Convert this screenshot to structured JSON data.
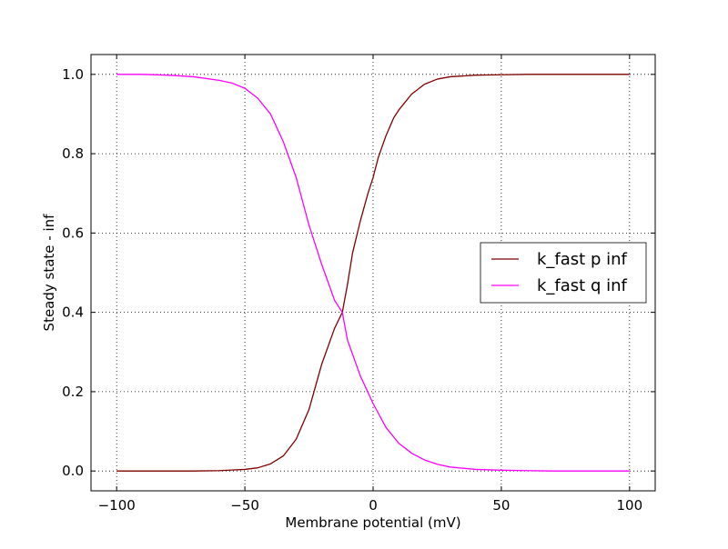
{
  "chart_data": {
    "type": "line",
    "title": "",
    "xlabel": "Membrane potential (mV)",
    "ylabel": "Steady state - inf",
    "xlim": [
      -110,
      110
    ],
    "ylim": [
      -0.05,
      1.05
    ],
    "xticks": [
      -100,
      -50,
      0,
      50,
      100
    ],
    "xtick_labels": [
      "−100",
      "−50",
      "0",
      "50",
      "100"
    ],
    "yticks": [
      0.0,
      0.2,
      0.4,
      0.6,
      0.8,
      1.0
    ],
    "ytick_labels": [
      "0.0",
      "0.2",
      "0.4",
      "0.6",
      "0.8",
      "1.0"
    ],
    "grid": true,
    "legend_position": "center-right",
    "series": [
      {
        "name": "k_fast p inf",
        "color": "#800000",
        "x": [
          -100,
          -90,
          -80,
          -70,
          -60,
          -50,
          -45,
          -40,
          -35,
          -30,
          -25,
          -20,
          -15,
          -12,
          -10,
          -8,
          -5,
          -2,
          0,
          2,
          5,
          8,
          10,
          15,
          20,
          25,
          30,
          40,
          50,
          60,
          70,
          80,
          90,
          100
        ],
        "y": [
          0.0,
          0.0,
          0.0,
          0.0,
          0.001,
          0.004,
          0.008,
          0.018,
          0.038,
          0.08,
          0.155,
          0.27,
          0.36,
          0.4,
          0.47,
          0.55,
          0.63,
          0.7,
          0.74,
          0.79,
          0.845,
          0.89,
          0.91,
          0.95,
          0.975,
          0.988,
          0.994,
          0.998,
          0.999,
          1.0,
          1.0,
          1.0,
          1.0,
          1.0
        ]
      },
      {
        "name": "k_fast q inf",
        "color": "#ff00ff",
        "x": [
          -100,
          -90,
          -80,
          -70,
          -60,
          -55,
          -50,
          -45,
          -40,
          -35,
          -30,
          -25,
          -20,
          -15,
          -12,
          -10,
          -5,
          0,
          5,
          10,
          15,
          20,
          25,
          30,
          40,
          50,
          60,
          70,
          80,
          90,
          100
        ],
        "y": [
          1.0,
          1.0,
          0.998,
          0.994,
          0.985,
          0.978,
          0.965,
          0.94,
          0.9,
          0.83,
          0.74,
          0.62,
          0.52,
          0.43,
          0.4,
          0.33,
          0.24,
          0.17,
          0.11,
          0.07,
          0.045,
          0.028,
          0.017,
          0.01,
          0.004,
          0.002,
          0.001,
          0.0,
          0.0,
          0.0,
          0.0
        ]
      }
    ]
  }
}
